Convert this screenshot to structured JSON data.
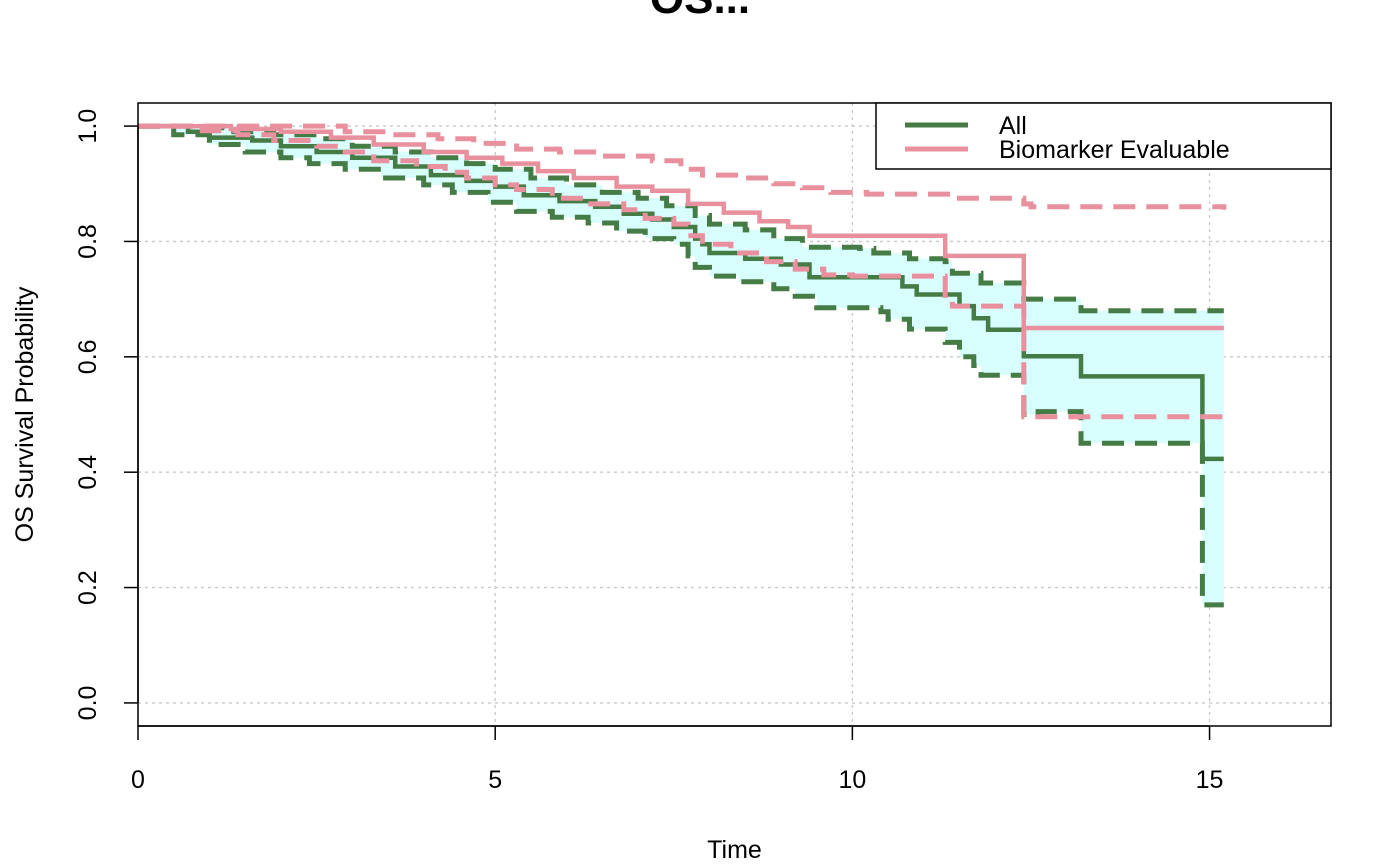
{
  "chart_data": {
    "type": "line",
    "title": "OS...",
    "xlabel": "Time",
    "ylabel": "OS Survival Probability",
    "xlim": [
      0,
      16.7
    ],
    "ylim": [
      -0.04,
      1.04
    ],
    "x_ticks": [
      "0",
      "5",
      "10",
      "15"
    ],
    "y_ticks": [
      "0.0",
      "0.2",
      "0.4",
      "0.6",
      "0.8",
      "1.0"
    ],
    "grid": true,
    "legend_position": "top-right",
    "colors": {
      "all": "#457B45",
      "biomarker": "#E8909E",
      "band": "#D8FEFE",
      "grid": "#C8C8C8"
    },
    "series": [
      {
        "name": "All",
        "steps": [
          [
            0,
            1.0
          ],
          [
            0.7,
            0.99
          ],
          [
            1.0,
            0.98
          ],
          [
            1.6,
            0.975
          ],
          [
            2.0,
            0.965
          ],
          [
            2.5,
            0.955
          ],
          [
            3.0,
            0.945
          ],
          [
            3.6,
            0.93
          ],
          [
            4.1,
            0.915
          ],
          [
            4.6,
            0.905
          ],
          [
            5.0,
            0.895
          ],
          [
            5.4,
            0.88
          ],
          [
            5.9,
            0.87
          ],
          [
            6.4,
            0.86
          ],
          [
            6.8,
            0.848
          ],
          [
            7.2,
            0.838
          ],
          [
            7.5,
            0.825
          ],
          [
            7.8,
            0.805
          ],
          [
            7.9,
            0.795
          ],
          [
            8.0,
            0.78
          ],
          [
            8.5,
            0.77
          ],
          [
            9.0,
            0.76
          ],
          [
            9.4,
            0.738
          ],
          [
            10.7,
            0.722
          ],
          [
            10.9,
            0.708
          ],
          [
            11.5,
            0.688
          ],
          [
            11.7,
            0.667
          ],
          [
            11.9,
            0.647
          ],
          [
            12.4,
            0.601
          ],
          [
            13.2,
            0.566
          ],
          [
            14.9,
            0.423
          ],
          [
            15.2,
            0.423
          ]
        ],
        "lower": [
          [
            0,
            1.0
          ],
          [
            0.5,
            0.985
          ],
          [
            1.0,
            0.968
          ],
          [
            1.5,
            0.955
          ],
          [
            2.0,
            0.945
          ],
          [
            2.4,
            0.935
          ],
          [
            2.9,
            0.925
          ],
          [
            3.4,
            0.91
          ],
          [
            4.0,
            0.898
          ],
          [
            4.4,
            0.885
          ],
          [
            4.9,
            0.868
          ],
          [
            5.3,
            0.852
          ],
          [
            5.8,
            0.842
          ],
          [
            6.3,
            0.832
          ],
          [
            6.7,
            0.818
          ],
          [
            7.1,
            0.805
          ],
          [
            7.5,
            0.795
          ],
          [
            7.7,
            0.775
          ],
          [
            7.8,
            0.755
          ],
          [
            8.0,
            0.74
          ],
          [
            8.4,
            0.73
          ],
          [
            8.9,
            0.718
          ],
          [
            9.2,
            0.705
          ],
          [
            9.5,
            0.685
          ],
          [
            10.4,
            0.678
          ],
          [
            10.5,
            0.665
          ],
          [
            10.8,
            0.648
          ],
          [
            11.3,
            0.625
          ],
          [
            11.5,
            0.6
          ],
          [
            11.7,
            0.585
          ],
          [
            11.8,
            0.568
          ],
          [
            12.2,
            0.568
          ],
          [
            12.4,
            0.5
          ],
          [
            12.6,
            0.505
          ],
          [
            13.2,
            0.45
          ],
          [
            14.9,
            0.17
          ],
          [
            15.2,
            0.17
          ]
        ],
        "upper": [
          [
            0,
            1.0
          ],
          [
            0.8,
            0.997
          ],
          [
            1.3,
            0.99
          ],
          [
            1.9,
            0.985
          ],
          [
            2.5,
            0.978
          ],
          [
            3.0,
            0.965
          ],
          [
            3.6,
            0.955
          ],
          [
            4.1,
            0.945
          ],
          [
            4.6,
            0.935
          ],
          [
            5.0,
            0.925
          ],
          [
            5.5,
            0.91
          ],
          [
            6.0,
            0.898
          ],
          [
            6.5,
            0.885
          ],
          [
            7.0,
            0.875
          ],
          [
            7.4,
            0.862
          ],
          [
            7.8,
            0.845
          ],
          [
            8.0,
            0.83
          ],
          [
            8.5,
            0.82
          ],
          [
            8.9,
            0.805
          ],
          [
            9.3,
            0.79
          ],
          [
            10.1,
            0.788
          ],
          [
            10.3,
            0.78
          ],
          [
            10.8,
            0.77
          ],
          [
            11.3,
            0.765
          ],
          [
            11.4,
            0.745
          ],
          [
            11.8,
            0.728
          ],
          [
            12.4,
            0.7
          ],
          [
            12.6,
            0.7
          ],
          [
            13.2,
            0.68
          ],
          [
            15.2,
            0.68
          ]
        ]
      },
      {
        "name": "Biomarker Evaluable",
        "steps": [
          [
            0,
            1.0
          ],
          [
            1.3,
            0.995
          ],
          [
            2.0,
            0.99
          ],
          [
            2.7,
            0.98
          ],
          [
            3.3,
            0.968
          ],
          [
            4.0,
            0.955
          ],
          [
            4.6,
            0.945
          ],
          [
            5.1,
            0.935
          ],
          [
            5.6,
            0.922
          ],
          [
            6.1,
            0.91
          ],
          [
            6.7,
            0.895
          ],
          [
            7.2,
            0.888
          ],
          [
            7.7,
            0.865
          ],
          [
            8.2,
            0.85
          ],
          [
            8.7,
            0.835
          ],
          [
            9.1,
            0.825
          ],
          [
            9.4,
            0.81
          ],
          [
            11.3,
            0.795
          ],
          [
            11.3,
            0.775
          ],
          [
            12.4,
            0.775
          ],
          [
            12.4,
            0.65
          ],
          [
            15.2,
            0.65
          ]
        ],
        "lower": [
          [
            0,
            1.0
          ],
          [
            0.9,
            0.992
          ],
          [
            1.4,
            0.985
          ],
          [
            1.9,
            0.975
          ],
          [
            2.5,
            0.965
          ],
          [
            2.9,
            0.955
          ],
          [
            3.3,
            0.94
          ],
          [
            3.9,
            0.93
          ],
          [
            4.3,
            0.92
          ],
          [
            4.6,
            0.91
          ],
          [
            5.0,
            0.898
          ],
          [
            5.3,
            0.89
          ],
          [
            5.8,
            0.875
          ],
          [
            6.3,
            0.865
          ],
          [
            6.8,
            0.855
          ],
          [
            7.1,
            0.84
          ],
          [
            7.5,
            0.83
          ],
          [
            7.7,
            0.81
          ],
          [
            7.9,
            0.795
          ],
          [
            8.3,
            0.78
          ],
          [
            8.8,
            0.765
          ],
          [
            9.2,
            0.752
          ],
          [
            9.6,
            0.742
          ],
          [
            10.0,
            0.74
          ],
          [
            11.3,
            0.7
          ],
          [
            11.4,
            0.688
          ],
          [
            12.4,
            0.672
          ],
          [
            12.4,
            0.496
          ],
          [
            15.2,
            0.496
          ]
        ],
        "upper": [
          [
            0,
            1.0
          ],
          [
            2.4,
            1.0
          ],
          [
            2.9,
            0.99
          ],
          [
            3.5,
            0.985
          ],
          [
            4.2,
            0.978
          ],
          [
            4.7,
            0.97
          ],
          [
            5.3,
            0.96
          ],
          [
            5.9,
            0.955
          ],
          [
            6.5,
            0.948
          ],
          [
            7.2,
            0.94
          ],
          [
            7.6,
            0.925
          ],
          [
            7.9,
            0.915
          ],
          [
            8.4,
            0.91
          ],
          [
            8.9,
            0.9
          ],
          [
            9.3,
            0.893
          ],
          [
            9.7,
            0.885
          ],
          [
            10.2,
            0.882
          ],
          [
            11.2,
            0.882
          ],
          [
            11.4,
            0.875
          ],
          [
            12.3,
            0.875
          ],
          [
            12.4,
            0.865
          ],
          [
            12.5,
            0.86
          ],
          [
            15.2,
            0.855
          ]
        ]
      }
    ],
    "legend": {
      "entries": [
        "All",
        "Biomarker Evaluable"
      ]
    }
  }
}
